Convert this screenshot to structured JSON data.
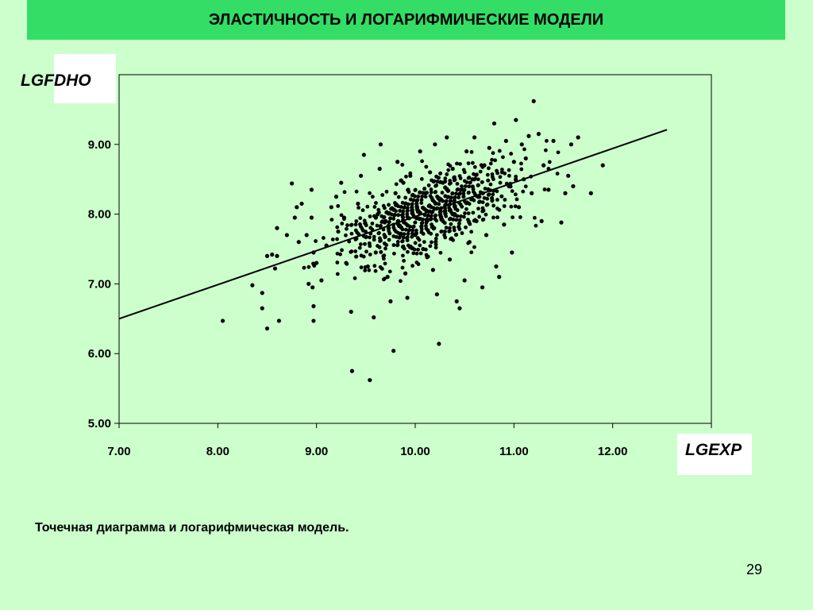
{
  "slide": {
    "title": "ЭЛАСТИЧНОСТЬ И ЛОГАРИФМИЧЕСКИЕ МОДЕЛИ",
    "caption": "Точечная диаграмма и логарифмическая модель.",
    "page_number": "29"
  },
  "colors": {
    "background": "#ccffcc",
    "title_bar": "#33dd66",
    "plot_area": "#ccffcc",
    "marks": "#000000"
  },
  "chart_data": {
    "type": "scatter",
    "title": "",
    "xlabel": "LGEXP",
    "ylabel": "LGFDHO",
    "xlim": [
      7,
      13
    ],
    "ylim": [
      5,
      10
    ],
    "x_ticks": [
      "7.00",
      "8.00",
      "9.00",
      "10.00",
      "11.00",
      "12.00"
    ],
    "y_ticks": [
      "5.00",
      "6.00",
      "7.00",
      "8.00",
      "9.00"
    ],
    "grid": false,
    "legend": "none",
    "regression_line": {
      "x_start": 7.0,
      "y_start": 6.5,
      "x_end": 12.55,
      "y_end": 9.21
    },
    "points": [
      [
        8.05,
        6.47
      ],
      [
        8.35,
        6.98
      ],
      [
        8.45,
        6.87
      ],
      [
        8.45,
        6.65
      ],
      [
        8.5,
        6.36
      ],
      [
        8.62,
        6.47
      ],
      [
        8.5,
        7.4
      ],
      [
        8.55,
        7.42
      ],
      [
        8.6,
        7.4
      ],
      [
        8.58,
        7.22
      ],
      [
        8.6,
        7.8
      ],
      [
        8.7,
        7.7
      ],
      [
        8.75,
        8.44
      ],
      [
        8.8,
        8.1
      ],
      [
        8.85,
        8.15
      ],
      [
        8.78,
        7.95
      ],
      [
        8.82,
        7.6
      ],
      [
        8.9,
        7.7
      ],
      [
        8.95,
        8.35
      ],
      [
        8.95,
        7.95
      ],
      [
        8.97,
        7.45
      ],
      [
        9.0,
        7.3
      ],
      [
        8.92,
        7.0
      ],
      [
        8.96,
        6.95
      ],
      [
        8.97,
        6.68
      ],
      [
        8.97,
        6.47
      ],
      [
        9.05,
        7.05
      ],
      [
        9.1,
        7.55
      ],
      [
        9.15,
        8.1
      ],
      [
        9.2,
        8.25
      ],
      [
        9.22,
        7.75
      ],
      [
        9.25,
        8.45
      ],
      [
        9.28,
        7.95
      ],
      [
        9.3,
        7.3
      ],
      [
        9.35,
        6.6
      ],
      [
        9.36,
        5.75
      ],
      [
        9.4,
        7.65
      ],
      [
        9.42,
        8.15
      ],
      [
        9.45,
        8.55
      ],
      [
        9.48,
        8.85
      ],
      [
        9.52,
        7.25
      ],
      [
        9.54,
        5.62
      ],
      [
        9.58,
        6.52
      ],
      [
        9.6,
        7.45
      ],
      [
        9.62,
        8.0
      ],
      [
        9.64,
        8.65
      ],
      [
        9.65,
        9.0
      ],
      [
        9.7,
        7.9
      ],
      [
        9.72,
        7.1
      ],
      [
        9.75,
        6.75
      ],
      [
        9.78,
        6.04
      ],
      [
        9.8,
        8.3
      ],
      [
        9.82,
        8.75
      ],
      [
        9.85,
        7.7
      ],
      [
        9.88,
        8.45
      ],
      [
        9.9,
        7.15
      ],
      [
        9.92,
        6.8
      ],
      [
        9.95,
        8.55
      ],
      [
        10.0,
        7.7
      ],
      [
        10.02,
        8.1
      ],
      [
        10.05,
        8.9
      ],
      [
        10.08,
        7.5
      ],
      [
        10.1,
        8.3
      ],
      [
        10.12,
        7.9
      ],
      [
        10.15,
        8.6
      ],
      [
        10.18,
        7.2
      ],
      [
        10.2,
        9.0
      ],
      [
        10.22,
        6.85
      ],
      [
        10.24,
        6.14
      ],
      [
        10.25,
        8.2
      ],
      [
        10.28,
        8.45
      ],
      [
        10.3,
        7.75
      ],
      [
        10.32,
        9.1
      ],
      [
        10.35,
        7.35
      ],
      [
        10.38,
        8.65
      ],
      [
        10.4,
        8.0
      ],
      [
        10.42,
        6.75
      ],
      [
        10.45,
        6.65
      ],
      [
        10.48,
        8.35
      ],
      [
        10.5,
        7.05
      ],
      [
        10.52,
        8.9
      ],
      [
        10.55,
        7.6
      ],
      [
        10.58,
        8.5
      ],
      [
        10.6,
        9.1
      ],
      [
        10.62,
        7.9
      ],
      [
        10.65,
        8.25
      ],
      [
        10.68,
        6.95
      ],
      [
        10.7,
        8.7
      ],
      [
        10.72,
        7.7
      ],
      [
        10.75,
        8.95
      ],
      [
        10.78,
        8.2
      ],
      [
        10.8,
        9.3
      ],
      [
        10.82,
        7.25
      ],
      [
        10.85,
        7.1
      ],
      [
        10.88,
        8.6
      ],
      [
        10.9,
        7.85
      ],
      [
        10.92,
        9.05
      ],
      [
        10.95,
        8.4
      ],
      [
        10.98,
        7.45
      ],
      [
        11.0,
        8.75
      ],
      [
        11.02,
        9.35
      ],
      [
        11.05,
        8.1
      ],
      [
        11.08,
        9.0
      ],
      [
        11.1,
        8.5
      ],
      [
        11.12,
        8.8
      ],
      [
        11.15,
        9.12
      ],
      [
        11.18,
        8.3
      ],
      [
        11.2,
        9.62
      ],
      [
        11.25,
        9.15
      ],
      [
        11.28,
        7.9
      ],
      [
        11.3,
        8.7
      ],
      [
        11.35,
        8.35
      ],
      [
        11.4,
        9.05
      ],
      [
        11.48,
        7.88
      ],
      [
        11.52,
        8.3
      ],
      [
        11.55,
        8.55
      ],
      [
        11.58,
        9.0
      ],
      [
        11.6,
        8.4
      ],
      [
        11.65,
        9.1
      ],
      [
        11.78,
        8.3
      ],
      [
        11.9,
        8.7
      ]
    ]
  }
}
